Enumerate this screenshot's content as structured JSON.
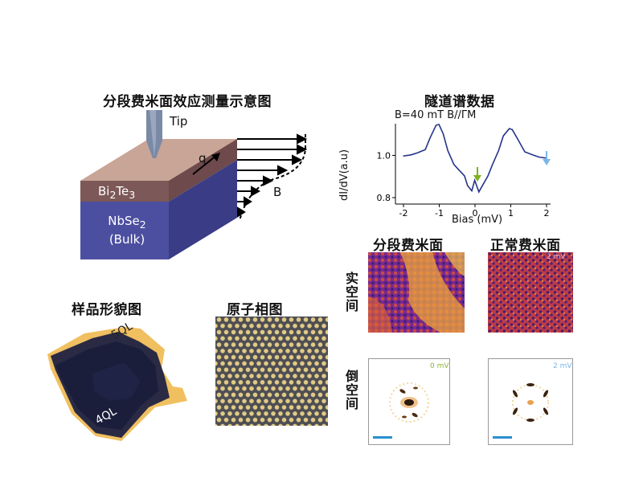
{
  "diagram": {
    "title": "分段费米面效应测量示意图",
    "tip_label": "Tip",
    "q_label": "q",
    "b_label": "B",
    "layer_top_html": "Bi<sub>2</sub>Te<sub>3</sub>",
    "layer_bottom_line1_html": "NbSe<sub>2</sub>",
    "layer_bottom_line2": "(Bulk)",
    "colors": {
      "top_layer": "#7d5858",
      "bottom_layer": "#4c4fa0",
      "top_surface": "#c8a496"
    }
  },
  "spectrum": {
    "title": "隧道谱数据",
    "condition_html": "B=40 mT B//ΓM",
    "ylabel": "dI/dV(a.u)",
    "xlabel": "Bias (mV)",
    "x_ticks": [
      "-2",
      "-1",
      "0",
      "1",
      "2"
    ],
    "y_ticks": [
      "1.0",
      "0.8"
    ],
    "arrow_colors": {
      "green": "#7fb21c",
      "blue": "#7ab6e6"
    },
    "curve_color": "#26348a"
  },
  "maps": {
    "segmented_title": "分段费米面",
    "normal_title": "正常费米面",
    "real_space_label": "实空间",
    "reciprocal_label": "倒空间",
    "energy_labels": [
      "2 mV",
      "0 mV",
      "2 mV"
    ]
  },
  "topography": {
    "title": "样品形貌图",
    "label_5ql": "5QL",
    "label_4ql": "4QL"
  },
  "atomic": {
    "title": "原子相图"
  }
}
